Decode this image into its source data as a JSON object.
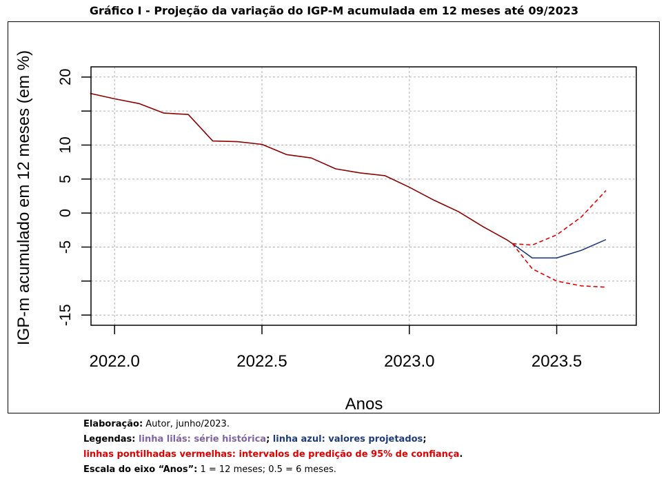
{
  "figure": {
    "title": "Gráfico I - Projeção da variação do IGP-M acumulada em 12 meses até 09/2023"
  },
  "chart_data": {
    "type": "line",
    "title": "Gráfico I - Projeção da variação do IGP-M acumulada em 12 meses até 09/2023",
    "xlabel": "Anos",
    "ylabel": "IGP-m acumulado em 12 meses (em %)",
    "xlim": [
      2021.92,
      2023.77
    ],
    "ylim": [
      -16.5,
      21.5
    ],
    "x_ticks": [
      2022.0,
      2022.5,
      2023.0,
      2023.5
    ],
    "x_tick_labels": [
      "2022.0",
      "2022.5",
      "2023.0",
      "2023.5"
    ],
    "y_ticks": [
      -15,
      -10,
      -5,
      0,
      5,
      10,
      15,
      20
    ],
    "y_tick_labels": [
      "-15",
      "",
      "-5",
      "0",
      "5",
      "10",
      "",
      "20"
    ],
    "grid": true,
    "series": [
      {
        "color": "#8b0000",
        "style": "solid",
        "points": [
          [
            2021.917,
            17.6
          ],
          [
            2022.0,
            16.8
          ],
          [
            2022.083,
            16.1
          ],
          [
            2022.167,
            14.7
          ],
          [
            2022.25,
            14.5
          ],
          [
            2022.333,
            10.6
          ],
          [
            2022.417,
            10.5
          ],
          [
            2022.5,
            10.1
          ],
          [
            2022.583,
            8.6
          ],
          [
            2022.667,
            8.1
          ],
          [
            2022.75,
            6.5
          ],
          [
            2022.833,
            5.9
          ],
          [
            2022.917,
            5.5
          ],
          [
            2023.0,
            3.8
          ],
          [
            2023.083,
            1.9
          ],
          [
            2023.167,
            0.2
          ],
          [
            2023.25,
            -2.0
          ],
          [
            2023.333,
            -4.0
          ],
          [
            2023.35,
            -4.5
          ]
        ]
      },
      {
        "color": "#1f3b7a",
        "style": "solid",
        "points": [
          [
            2023.35,
            -4.5
          ],
          [
            2023.417,
            -6.6
          ],
          [
            2023.5,
            -6.6
          ],
          [
            2023.583,
            -5.5
          ],
          [
            2023.667,
            -3.9
          ]
        ]
      },
      {
        "color": "#e00000",
        "style": "dashed",
        "points": [
          [
            2023.35,
            -4.5
          ],
          [
            2023.417,
            -4.7
          ],
          [
            2023.5,
            -3.2
          ],
          [
            2023.583,
            -0.6
          ],
          [
            2023.667,
            3.3
          ]
        ]
      },
      {
        "color": "#e00000",
        "style": "dashed",
        "points": [
          [
            2023.35,
            -4.5
          ],
          [
            2023.417,
            -8.2
          ],
          [
            2023.5,
            -10.0
          ],
          [
            2023.583,
            -10.7
          ],
          [
            2023.667,
            -10.9
          ]
        ]
      }
    ]
  },
  "notes": {
    "line1_label": "Elaboração:",
    "line1_text": " Autor, junho/2023.",
    "line2_label": "Legendas: ",
    "line2_lilac": "linha lilás: série histórica",
    "line2_sep": "; ",
    "line2_blue": "linha azul: valores projetados",
    "line2_end": ";",
    "line3_red": "linhas pontilhadas vermelhas: intervalos de predição de 95% de confiança",
    "line3_end": ".",
    "line4_label": "Escala do eixo “Anos”:",
    "line4_text": " 1 = 12 meses; 0.5 = 6 meses."
  }
}
